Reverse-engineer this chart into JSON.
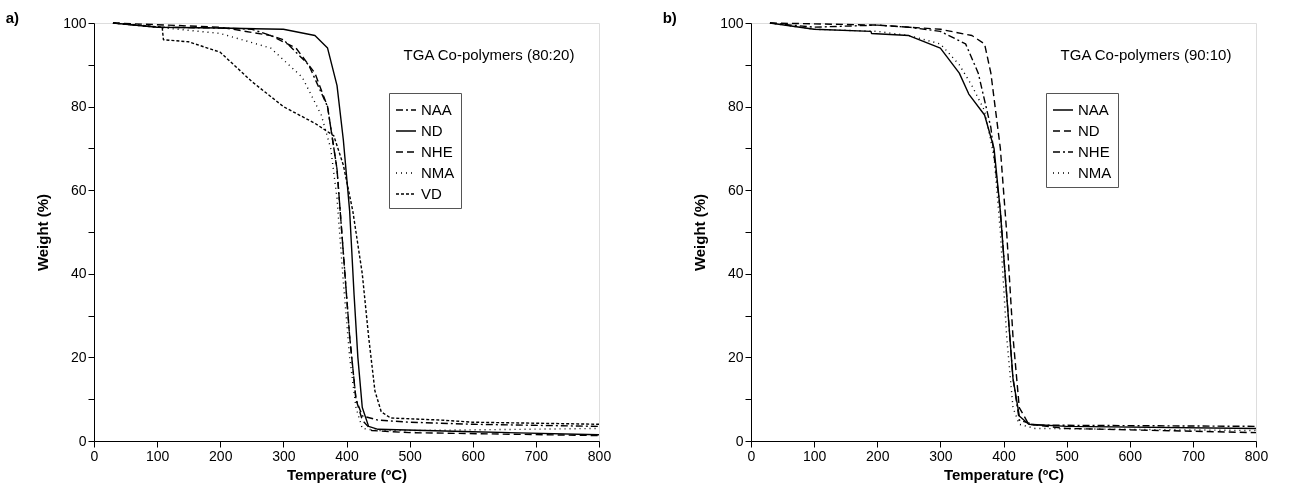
{
  "chart_data": [
    {
      "type": "line",
      "title": "a)",
      "xlabel": "Temperature (ºC)",
      "ylabel": "Weight (%)",
      "annotations": [
        "TGA Co-polymers (80:20)"
      ],
      "xlim": [
        0,
        800
      ],
      "ylim": [
        0,
        100
      ],
      "xticks": [
        0,
        100,
        200,
        300,
        400,
        500,
        600,
        700,
        800
      ],
      "yticks": [
        0,
        {
          "value": 10,
          "label": null
        },
        20,
        {
          "value": 30,
          "label": null
        },
        40,
        {
          "value": 50,
          "label": null
        },
        60,
        {
          "value": 70,
          "label": null
        },
        80,
        {
          "value": 90,
          "label": null
        },
        100
      ],
      "grid": false,
      "legend": "top right",
      "marker": "none",
      "series": [
        {
          "name": "NAA",
          "color": "#000000",
          "line_style": "dashdot",
          "x": [
            30,
            100,
            200,
            250,
            300,
            340,
            370,
            385,
            395,
            405,
            415,
            425,
            450,
            500,
            600,
            800
          ],
          "values": [
            100,
            99,
            98.8,
            98.5,
            96,
            90,
            80,
            65,
            45,
            25,
            10,
            6,
            5,
            4.5,
            4,
            3.5
          ]
        },
        {
          "name": "ND",
          "color": "#000000",
          "line_style": "solid",
          "x": [
            30,
            100,
            200,
            300,
            350,
            370,
            385,
            395,
            405,
            412,
            418,
            425,
            435,
            450,
            600,
            800
          ],
          "values": [
            100,
            99,
            98.8,
            98.5,
            97,
            94,
            85,
            72,
            55,
            35,
            20,
            8,
            3.5,
            2.8,
            2.2,
            1.5
          ]
        },
        {
          "name": "NHE",
          "color": "#000000",
          "line_style": "dashed",
          "x": [
            30,
            200,
            280,
            320,
            350,
            370,
            385,
            395,
            405,
            415,
            425,
            440,
            500,
            800
          ],
          "values": [
            100,
            99,
            97,
            94,
            88,
            80,
            65,
            45,
            25,
            10,
            5,
            2.5,
            2,
            1.3
          ]
        },
        {
          "name": "NMA",
          "color": "#000000",
          "line_style": "dotted",
          "x": [
            30,
            100,
            200,
            280,
            330,
            360,
            375,
            385,
            395,
            405,
            415,
            425,
            450,
            500,
            800
          ],
          "values": [
            100,
            99,
            97.5,
            94,
            87,
            78,
            70,
            58,
            38,
            20,
            8,
            3,
            2.5,
            2.5,
            3
          ]
        },
        {
          "name": "VD",
          "color": "#000000",
          "line_style": "short dashed",
          "x": [
            30,
            108,
            110,
            150,
            200,
            250,
            300,
            350,
            380,
            395,
            410,
            425,
            435,
            445,
            455,
            470,
            550,
            600,
            800
          ],
          "values": [
            100,
            99,
            96,
            95.5,
            93,
            86,
            80,
            76,
            73,
            66,
            55,
            40,
            25,
            12,
            7,
            5.5,
            5,
            4.5,
            4
          ]
        }
      ]
    },
    {
      "type": "line",
      "title": "b)",
      "xlabel": "Temperature (ºC)",
      "ylabel": "Weight (%)",
      "annotations": [
        "TGA Co-polymers (90:10)"
      ],
      "xlim": [
        0,
        800
      ],
      "ylim": [
        0,
        100
      ],
      "xticks": [
        0,
        100,
        200,
        300,
        400,
        500,
        600,
        700,
        800
      ],
      "yticks": [
        0,
        {
          "value": 10,
          "label": null
        },
        20,
        {
          "value": 30,
          "label": null
        },
        40,
        {
          "value": 50,
          "label": null
        },
        60,
        {
          "value": 70,
          "label": null
        },
        80,
        {
          "value": 90,
          "label": null
        },
        100
      ],
      "grid": false,
      "legend": "top right",
      "marker": "none",
      "series": [
        {
          "name": "NAA",
          "color": "#000000",
          "line_style": "solid",
          "x": [
            30,
            100,
            190,
            191,
            250,
            300,
            330,
            345,
            370,
            385,
            395,
            405,
            415,
            425,
            440,
            500,
            800
          ],
          "values": [
            100,
            98.5,
            98,
            97.5,
            97,
            94,
            88,
            83,
            78,
            70,
            55,
            35,
            15,
            6,
            4,
            3.5,
            3
          ]
        },
        {
          "name": "ND",
          "color": "#000000",
          "line_style": "dashed",
          "x": [
            30,
            200,
            300,
            350,
            370,
            380,
            395,
            405,
            415,
            425,
            440,
            500,
            800
          ],
          "values": [
            100,
            99.5,
            98.5,
            97,
            95,
            88,
            70,
            50,
            25,
            8,
            4,
            3,
            2
          ]
        },
        {
          "name": "NHE",
          "color": "#000000",
          "line_style": "dashdot",
          "x": [
            30,
            100,
            200,
            250,
            300,
            340,
            360,
            380,
            395,
            405,
            415,
            425,
            450,
            800
          ],
          "values": [
            100,
            99,
            99.5,
            99,
            98,
            95,
            88,
            75,
            55,
            35,
            15,
            5,
            3.8,
            3.5
          ]
        },
        {
          "name": "NMA",
          "color": "#000000",
          "line_style": "dotted",
          "x": [
            30,
            100,
            200,
            250,
            300,
            330,
            350,
            370,
            385,
            395,
            405,
            415,
            425,
            450,
            800
          ],
          "values": [
            100,
            98.5,
            98,
            97,
            95,
            90,
            85,
            79,
            68,
            50,
            25,
            8,
            4,
            3,
            2.5
          ]
        }
      ]
    }
  ]
}
